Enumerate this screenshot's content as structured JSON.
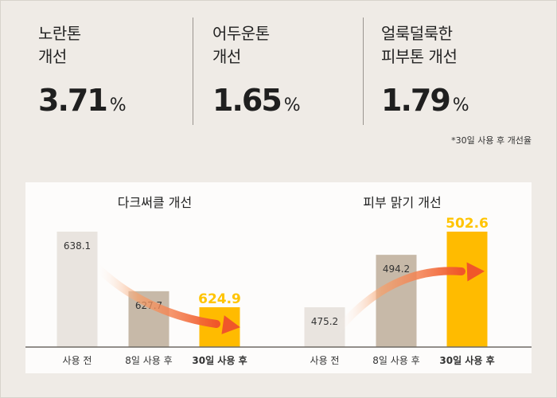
{
  "stats": [
    {
      "label": "노란톤\n개선",
      "value": "3.71",
      "unit": "%"
    },
    {
      "label": "어두운톤\n개선",
      "value": "1.65",
      "unit": "%"
    },
    {
      "label": "얼룩덜룩한\n피부톤 개선",
      "value": "1.79",
      "unit": "%"
    }
  ],
  "footnote": "*30일 사용 후 개선율",
  "colors": {
    "before": "#e9e4df",
    "mid": "#c7b9a8",
    "after": "#ffbb00",
    "arrow": "#f0562a",
    "highlight": "#ffc400"
  },
  "chart_data": [
    {
      "type": "bar",
      "title": "다크써클 개선",
      "categories": [
        "사용 전",
        "8일 사용 후",
        "30일 사용 후"
      ],
      "values": [
        638.1,
        627.7,
        624.9
      ],
      "value_labels": [
        "638.1",
        "627.7",
        "624.9"
      ],
      "highlight_index": 2,
      "trend": "down"
    },
    {
      "type": "bar",
      "title": "피부 맑기 개선",
      "categories": [
        "사용 전",
        "8일 사용 후",
        "30일 사용 후"
      ],
      "values": [
        475.2,
        494.2,
        502.6
      ],
      "value_labels": [
        "475.2",
        "494.2",
        "502.6"
      ],
      "highlight_index": 2,
      "trend": "up"
    }
  ]
}
